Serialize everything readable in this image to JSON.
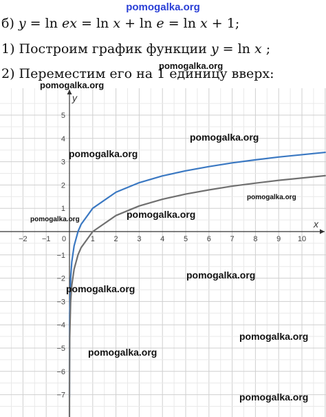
{
  "watermark_top": "pomogalka.org",
  "text": {
    "line1": {
      "prefix": "б) ",
      "parts": [
        "y",
        " = ln ",
        "ex",
        " = ln ",
        "x",
        " + ln ",
        "e",
        " = ln ",
        "x",
        " + 1;"
      ]
    },
    "line2": {
      "prefix": "1) Построим график функции ",
      "parts": [
        "y",
        " = ln ",
        "x",
        " ;"
      ]
    },
    "line3": "2) Переместим его на 1 единицу вверх:"
  },
  "watermarks": [
    "pomogalka.org",
    "pomogalka.org",
    "pomogalka.org",
    "pomogalka.org",
    "pomogalka.org",
    "pomogalka.org",
    "pomogalka.org",
    "pomogalka.org",
    "pomogalka.org",
    "pomogalka.org",
    "pomogalka.org",
    "pomogalka.org"
  ],
  "chart_data": {
    "type": "line",
    "xlabel": "x",
    "ylabel": "y",
    "xlim": [
      -2.9,
      11
    ],
    "ylim": [
      -8,
      5.6
    ],
    "grid": true,
    "x_ticks": [
      -2,
      -1,
      0,
      1,
      2,
      3,
      4,
      5,
      6,
      7,
      8,
      9,
      10
    ],
    "y_ticks": [
      5,
      4,
      3,
      2,
      1,
      -1,
      -2,
      -3,
      -4,
      -5,
      -6,
      -7
    ],
    "series": [
      {
        "function": "ln(x) + 1",
        "color": "#3a78c2",
        "x": [
          0.0003,
          0.001,
          0.01,
          0.05,
          0.1,
          0.2,
          0.37,
          0.5,
          1,
          2,
          3,
          4,
          5,
          6,
          7,
          8,
          9,
          10,
          11
        ],
        "y": [
          -7.11,
          -5.91,
          -3.61,
          -2.0,
          -1.3,
          -0.61,
          0.01,
          0.31,
          1.0,
          1.69,
          2.1,
          2.39,
          2.61,
          2.79,
          2.95,
          3.08,
          3.2,
          3.3,
          3.4
        ]
      },
      {
        "function": "ln(x)",
        "color": "#707070",
        "x": [
          0.0003,
          0.001,
          0.01,
          0.05,
          0.1,
          0.2,
          0.37,
          0.5,
          1,
          2,
          3,
          4,
          5,
          6,
          7,
          8,
          9,
          10,
          11
        ],
        "y": [
          -8.11,
          -6.91,
          -4.61,
          -3.0,
          -2.3,
          -1.61,
          -0.99,
          -0.69,
          0.0,
          0.69,
          1.1,
          1.39,
          1.61,
          1.79,
          1.95,
          2.08,
          2.2,
          2.3,
          2.4
        ]
      }
    ]
  }
}
